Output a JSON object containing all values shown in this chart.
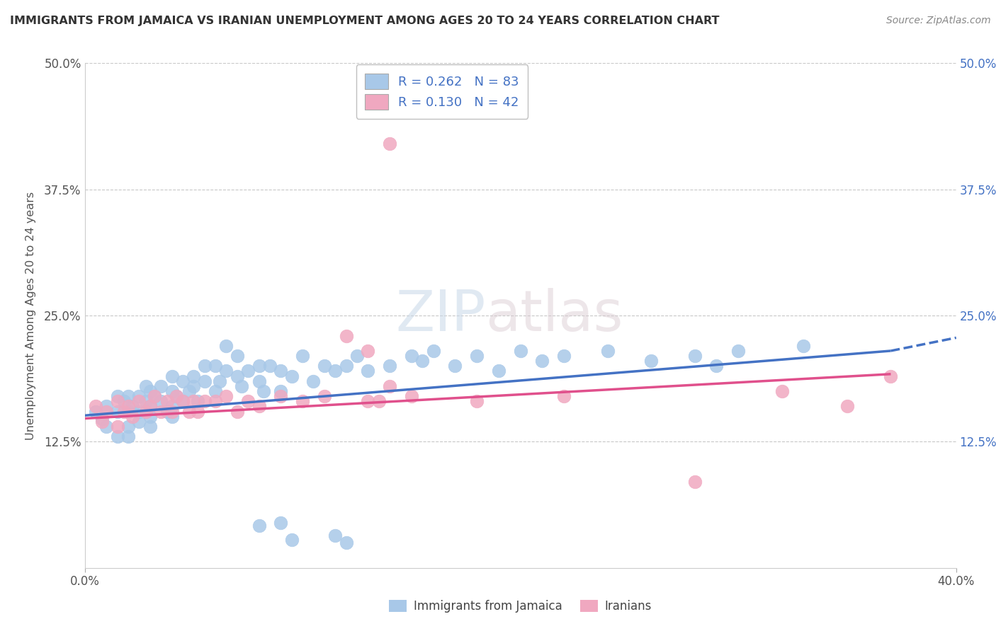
{
  "title": "IMMIGRANTS FROM JAMAICA VS IRANIAN UNEMPLOYMENT AMONG AGES 20 TO 24 YEARS CORRELATION CHART",
  "source": "Source: ZipAtlas.com",
  "ylabel": "Unemployment Among Ages 20 to 24 years",
  "xlim": [
    0.0,
    0.4
  ],
  "ylim": [
    0.0,
    0.5
  ],
  "xticks": [
    0.0,
    0.4
  ],
  "xticklabels": [
    "0.0%",
    "40.0%"
  ],
  "yticks_left": [
    0.125,
    0.25,
    0.375,
    0.5
  ],
  "yticklabels_left": [
    "12.5%",
    "25.0%",
    "37.5%",
    "50.0%"
  ],
  "yticks_right": [
    0.125,
    0.25,
    0.375,
    0.5
  ],
  "yticklabels_right": [
    "12.5%",
    "25.0%",
    "37.5%",
    "50.0%"
  ],
  "hgrid_lines": [
    0.125,
    0.25,
    0.375,
    0.5
  ],
  "legend_labels": [
    "Immigrants from Jamaica",
    "Iranians"
  ],
  "blue_scatter_color": "#a8c8e8",
  "pink_scatter_color": "#f0a8c0",
  "blue_line_color": "#4472c4",
  "pink_line_color": "#e0508c",
  "right_tick_color": "#4472c4",
  "watermark_zip": "ZIP",
  "watermark_atlas": "atlas",
  "R_blue": 0.262,
  "N_blue": 83,
  "R_pink": 0.13,
  "N_pink": 42,
  "blue_trend": [
    0.0,
    0.151,
    0.37,
    0.215
  ],
  "blue_trend_dash": [
    0.37,
    0.215,
    0.4,
    0.228
  ],
  "pink_trend": [
    0.0,
    0.148,
    0.37,
    0.192
  ],
  "blue_x": [
    0.005,
    0.008,
    0.01,
    0.01,
    0.015,
    0.015,
    0.015,
    0.018,
    0.02,
    0.02,
    0.02,
    0.02,
    0.022,
    0.025,
    0.025,
    0.025,
    0.028,
    0.028,
    0.03,
    0.03,
    0.03,
    0.03,
    0.032,
    0.035,
    0.035,
    0.038,
    0.04,
    0.04,
    0.04,
    0.04,
    0.042,
    0.045,
    0.045,
    0.048,
    0.05,
    0.05,
    0.052,
    0.055,
    0.055,
    0.06,
    0.06,
    0.062,
    0.065,
    0.065,
    0.07,
    0.07,
    0.072,
    0.075,
    0.08,
    0.08,
    0.082,
    0.085,
    0.09,
    0.09,
    0.095,
    0.1,
    0.105,
    0.11,
    0.115,
    0.12,
    0.125,
    0.13,
    0.14,
    0.15,
    0.155,
    0.16,
    0.17,
    0.18,
    0.19,
    0.2,
    0.21,
    0.22,
    0.24,
    0.26,
    0.28,
    0.29,
    0.3,
    0.33,
    0.12,
    0.115,
    0.095,
    0.08,
    0.09
  ],
  "blue_y": [
    0.155,
    0.148,
    0.16,
    0.14,
    0.17,
    0.155,
    0.13,
    0.165,
    0.155,
    0.17,
    0.14,
    0.13,
    0.16,
    0.155,
    0.17,
    0.145,
    0.165,
    0.18,
    0.16,
    0.175,
    0.15,
    0.14,
    0.17,
    0.165,
    0.18,
    0.155,
    0.175,
    0.19,
    0.16,
    0.15,
    0.17,
    0.165,
    0.185,
    0.175,
    0.18,
    0.19,
    0.165,
    0.185,
    0.2,
    0.175,
    0.2,
    0.185,
    0.22,
    0.195,
    0.19,
    0.21,
    0.18,
    0.195,
    0.2,
    0.185,
    0.175,
    0.2,
    0.195,
    0.175,
    0.19,
    0.21,
    0.185,
    0.2,
    0.195,
    0.2,
    0.21,
    0.195,
    0.2,
    0.21,
    0.205,
    0.215,
    0.2,
    0.21,
    0.195,
    0.215,
    0.205,
    0.21,
    0.215,
    0.205,
    0.21,
    0.2,
    0.215,
    0.22,
    0.025,
    0.032,
    0.028,
    0.042,
    0.045
  ],
  "pink_x": [
    0.005,
    0.008,
    0.01,
    0.015,
    0.015,
    0.018,
    0.02,
    0.022,
    0.025,
    0.028,
    0.03,
    0.032,
    0.035,
    0.038,
    0.04,
    0.042,
    0.045,
    0.048,
    0.05,
    0.052,
    0.055,
    0.06,
    0.065,
    0.07,
    0.075,
    0.08,
    0.09,
    0.1,
    0.11,
    0.13,
    0.14,
    0.15,
    0.18,
    0.22,
    0.28,
    0.32,
    0.35,
    0.37,
    0.12,
    0.13,
    0.135,
    0.14
  ],
  "pink_y": [
    0.16,
    0.145,
    0.155,
    0.14,
    0.165,
    0.155,
    0.16,
    0.15,
    0.165,
    0.155,
    0.16,
    0.17,
    0.155,
    0.165,
    0.155,
    0.17,
    0.165,
    0.155,
    0.165,
    0.155,
    0.165,
    0.165,
    0.17,
    0.155,
    0.165,
    0.16,
    0.17,
    0.165,
    0.17,
    0.165,
    0.42,
    0.17,
    0.165,
    0.17,
    0.085,
    0.175,
    0.16,
    0.19,
    0.23,
    0.215,
    0.165,
    0.18
  ]
}
